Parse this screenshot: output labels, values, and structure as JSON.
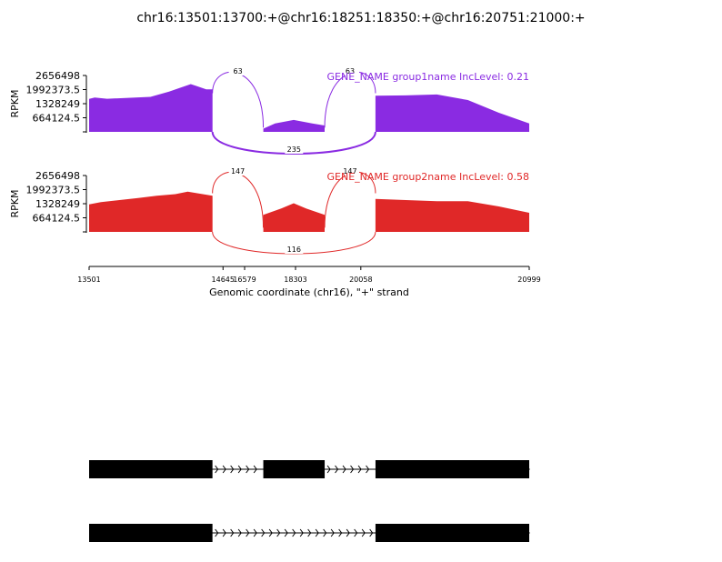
{
  "chart_data": {
    "type": "area",
    "title": "chr16:13501:13700:+@chr16:18251:18350:+@chr16:20751:21000:+",
    "xlabel": "Genomic coordinate (chr16), \"+\" strand",
    "ylabel": "RPKM",
    "xlim": [
      13501,
      20999
    ],
    "x_ticks": [
      "13501",
      "14645",
      "16579",
      "18303",
      "20058",
      "20999"
    ],
    "x_tick_values": [
      13501,
      14645,
      16579,
      18303,
      20058,
      20999
    ],
    "ylim": [
      0,
      2656498
    ],
    "y_ticks": [
      "2656498",
      "1992373.5",
      "1328249",
      "664124.5"
    ],
    "y_tick_values": [
      2656498,
      1992373.5,
      1328249,
      664124.5
    ],
    "exons": [
      [
        13501,
        13700
      ],
      [
        18251,
        18350
      ],
      [
        20751,
        21000
      ]
    ],
    "series": [
      {
        "name": "group1name",
        "label": "GENE_NAME group1name IncLevel: 0.21",
        "color": "#8a2be2",
        "coverage": [
          [
            13501,
            1550000
          ],
          [
            13510,
            1620000
          ],
          [
            13530,
            1560000
          ],
          [
            13560,
            1600000
          ],
          [
            13600,
            1650000
          ],
          [
            13630,
            1900000
          ],
          [
            13650,
            2100000
          ],
          [
            13665,
            2250000
          ],
          [
            13675,
            2150000
          ],
          [
            13690,
            2000000
          ],
          [
            13700,
            2000000
          ],
          [
            18251,
            150000
          ],
          [
            18270,
            400000
          ],
          [
            18300,
            560000
          ],
          [
            18330,
            400000
          ],
          [
            18350,
            300000
          ],
          [
            20751,
            1700000
          ],
          [
            20800,
            1720000
          ],
          [
            20850,
            1760000
          ],
          [
            20900,
            1500000
          ],
          [
            20950,
            900000
          ],
          [
            20999,
            400000
          ]
        ],
        "junctions": [
          {
            "from": 13700,
            "to": 18251,
            "count": "63",
            "side": "above"
          },
          {
            "from": 18350,
            "to": 20751,
            "count": "63",
            "side": "above"
          },
          {
            "from": 13700,
            "to": 20751,
            "count": "235",
            "side": "below"
          }
        ]
      },
      {
        "name": "group2name",
        "label": "GENE_NAME group2name IncLevel: 0.58",
        "color": "#e02828",
        "coverage": [
          [
            13501,
            1300000
          ],
          [
            13520,
            1400000
          ],
          [
            13550,
            1500000
          ],
          [
            13580,
            1600000
          ],
          [
            13610,
            1700000
          ],
          [
            13640,
            1780000
          ],
          [
            13660,
            1900000
          ],
          [
            13680,
            1800000
          ],
          [
            13700,
            1700000
          ],
          [
            18251,
            800000
          ],
          [
            18280,
            1100000
          ],
          [
            18300,
            1350000
          ],
          [
            18320,
            1100000
          ],
          [
            18350,
            800000
          ],
          [
            20751,
            1550000
          ],
          [
            20800,
            1500000
          ],
          [
            20850,
            1450000
          ],
          [
            20900,
            1450000
          ],
          [
            20950,
            1200000
          ],
          [
            20999,
            900000
          ]
        ],
        "junctions": [
          {
            "from": 13700,
            "to": 18251,
            "count": "147",
            "side": "above"
          },
          {
            "from": 18350,
            "to": 20751,
            "count": "147",
            "side": "above"
          },
          {
            "from": 13700,
            "to": 20751,
            "count": "116",
            "side": "below"
          }
        ]
      }
    ],
    "isoforms": [
      {
        "exons": [
          [
            13501,
            13700
          ],
          [
            18251,
            18350
          ],
          [
            20751,
            21000
          ]
        ],
        "strand": "+"
      },
      {
        "exons": [
          [
            13501,
            13700
          ],
          [
            20751,
            21000
          ]
        ],
        "strand": "+"
      }
    ]
  }
}
